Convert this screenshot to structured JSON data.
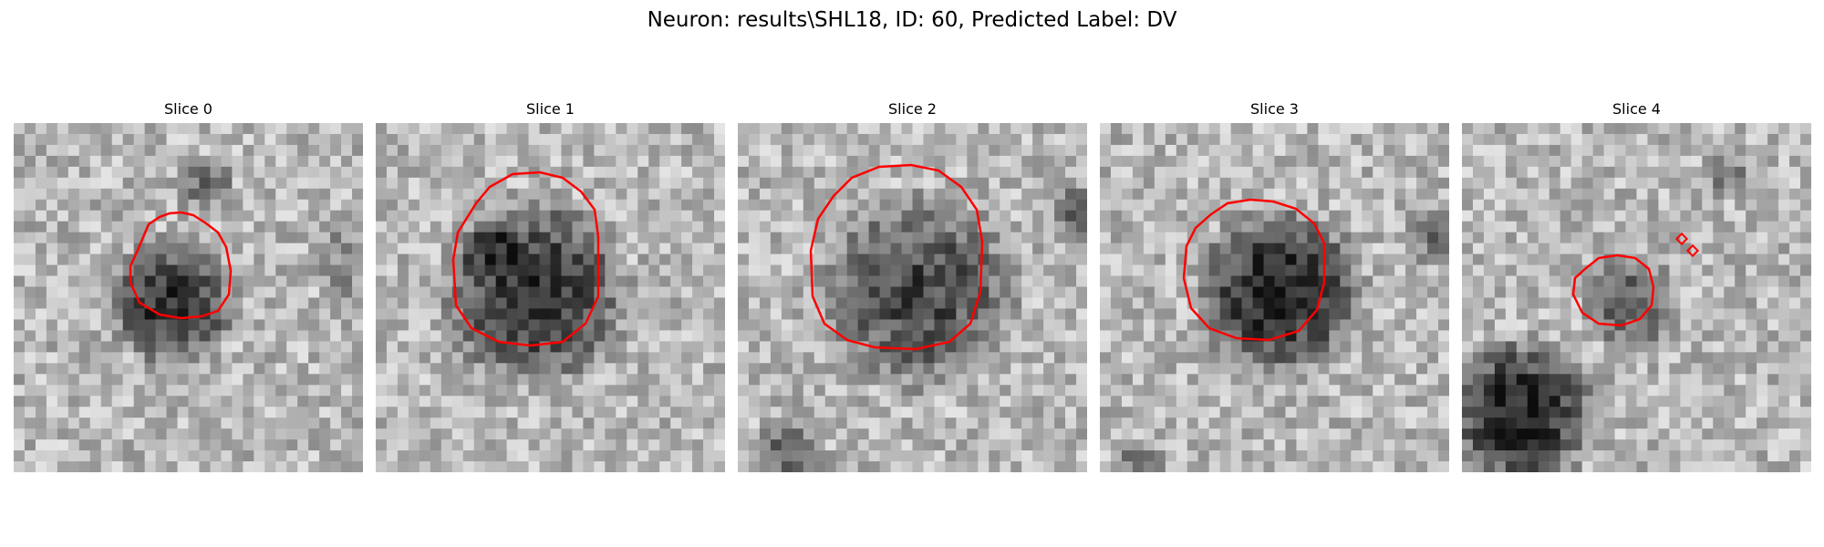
{
  "figure": {
    "title": "Neuron: results\\SHL18, ID: 60, Predicted Label: DV",
    "colors": {
      "background": "#ffffff",
      "contour": "#ff0000",
      "colormap": "gray"
    }
  },
  "panels": [
    {
      "title": "Slice 0"
    },
    {
      "title": "Slice 1"
    },
    {
      "title": "Slice 2"
    },
    {
      "title": "Slice 3"
    },
    {
      "title": "Slice 4"
    }
  ]
}
